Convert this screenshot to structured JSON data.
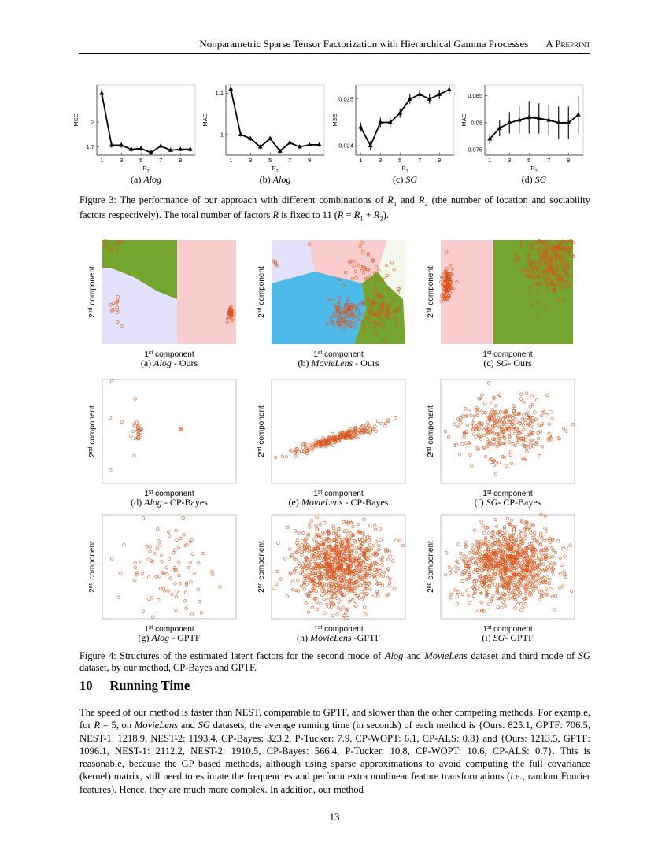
{
  "header": {
    "title": "Nonparametric Sparse Tensor Factorization with Hierarchical Gamma Processes",
    "tag": "A Preprint"
  },
  "chart_data": [
    {
      "type": "line",
      "ylabel": "MSE",
      "xlabel": "R",
      "xlabel_sub": "2",
      "caption_label": "(a) ",
      "caption_name": "Alog",
      "color": "#000000",
      "x": [
        1,
        2,
        3,
        4,
        5,
        6,
        7,
        8,
        9,
        10
      ],
      "values": [
        2.35,
        1.72,
        1.72,
        1.67,
        1.68,
        1.63,
        1.71,
        1.66,
        1.67,
        1.67
      ],
      "errors": [
        0.05,
        0.03,
        0.03,
        0.03,
        0.03,
        0.03,
        0.02,
        0.02,
        0.02,
        0.03
      ],
      "xlim": [
        0.5,
        10.5
      ],
      "ylim": [
        1.6,
        2.45
      ],
      "xticks": [
        1,
        3,
        5,
        7,
        9
      ],
      "yticks": [
        1.7,
        2
      ]
    },
    {
      "type": "line",
      "ylabel": "MAE",
      "xlabel": "R",
      "xlabel_sub": "2",
      "caption_label": "(b) ",
      "caption_name": "Alog",
      "color": "#000000",
      "x": [
        1,
        2,
        3,
        4,
        5,
        6,
        7,
        8,
        9,
        10
      ],
      "values": [
        1.11,
        1.0,
        0.99,
        0.97,
        0.99,
        0.96,
        0.98,
        0.97,
        0.975,
        0.975
      ],
      "errors": [
        0.012,
        0.005,
        0.005,
        0.005,
        0.005,
        0.005,
        0.004,
        0.004,
        0.004,
        0.005
      ],
      "xlim": [
        0.5,
        10.5
      ],
      "ylim": [
        0.95,
        1.12
      ],
      "xticks": [
        1,
        3,
        5,
        7,
        9
      ],
      "yticks": [
        1,
        1.1
      ]
    },
    {
      "type": "line",
      "ylabel": "MSE",
      "xlabel": "R",
      "xlabel_sub": "2",
      "caption_label": "(c) ",
      "caption_name": "SG",
      "color": "#000000",
      "x": [
        1,
        2,
        3,
        4,
        5,
        6,
        7,
        8,
        9,
        10
      ],
      "values": [
        0.0244,
        0.024,
        0.0245,
        0.0245,
        0.0247,
        0.025,
        0.0251,
        0.025,
        0.0251,
        0.0252
      ],
      "errors": [
        0.0001,
        0.0001,
        0.0001,
        0.0001,
        0.0001,
        0.0001,
        0.0001,
        0.0001,
        0.0001,
        0.0001
      ],
      "xlim": [
        0.5,
        10.5
      ],
      "ylim": [
        0.0238,
        0.0253
      ],
      "xticks": [
        1,
        3,
        5,
        7,
        9
      ],
      "yticks": [
        0.024,
        0.025
      ]
    },
    {
      "type": "line",
      "ylabel": "MAE",
      "xlabel": "R",
      "xlabel_sub": "2",
      "caption_label": "(d) ",
      "caption_name": "SG",
      "color": "#000000",
      "x": [
        1,
        2,
        3,
        4,
        5,
        6,
        7,
        8,
        9,
        10
      ],
      "values": [
        0.077,
        0.079,
        0.08,
        0.0805,
        0.081,
        0.0808,
        0.0805,
        0.08,
        0.08,
        0.0815
      ],
      "errors": [
        0.001,
        0.0015,
        0.002,
        0.0025,
        0.003,
        0.0028,
        0.0028,
        0.003,
        0.003,
        0.0035
      ],
      "xlim": [
        0.5,
        10.5
      ],
      "ylim": [
        0.074,
        0.087
      ],
      "xticks": [
        1,
        3,
        5,
        7,
        9
      ],
      "yticks": [
        0.075,
        0.08,
        0.085
      ]
    }
  ],
  "figure3_caption": [
    {
      "text": "Figure 3: The performance of our approach with different combinations of "
    },
    {
      "text": "R",
      "style": "italic"
    },
    {
      "text": "1",
      "style": "sub"
    },
    {
      "text": " and "
    },
    {
      "text": "R",
      "style": "italic"
    },
    {
      "text": "2",
      "style": "sub"
    },
    {
      "text": " (the number of location and sociability factors respectively). The total number of factors "
    },
    {
      "text": "R",
      "style": "italic"
    },
    {
      "text": " is fixed to 11 ("
    },
    {
      "text": "R",
      "style": "italic"
    },
    {
      "text": " = "
    },
    {
      "text": "R",
      "style": "italic"
    },
    {
      "text": "1",
      "style": "sub"
    },
    {
      "text": " + "
    },
    {
      "text": "R",
      "style": "italic"
    },
    {
      "text": "2",
      "style": "sub"
    },
    {
      "text": ")."
    }
  ],
  "figure4": {
    "axis": {
      "x_base": "1",
      "x_sup": "st",
      "x_rest": " component",
      "y_base": "2",
      "y_sup": "nd",
      "y_rest": " component"
    },
    "panels": [
      [
        {
          "text": "(a) "
        },
        {
          "text": "Alog",
          "style": "italic"
        },
        {
          "text": " - Ours"
        }
      ],
      [
        {
          "text": "(b) "
        },
        {
          "text": "MovieLens",
          "style": "italic"
        },
        {
          "text": " - Ours"
        }
      ],
      [
        {
          "text": "(c) "
        },
        {
          "text": "SG",
          "style": "italic"
        },
        {
          "text": "- Ours"
        }
      ],
      [
        {
          "text": "(d) "
        },
        {
          "text": "Alog",
          "style": "italic"
        },
        {
          "text": " - CP-Bayes"
        }
      ],
      [
        {
          "text": "(e) "
        },
        {
          "text": "MovieLens",
          "style": "italic"
        },
        {
          "text": " - CP-Bayes"
        }
      ],
      [
        {
          "text": "(f) "
        },
        {
          "text": "SG",
          "style": "italic"
        },
        {
          "text": "- CP-Bayes"
        }
      ],
      [
        {
          "text": "(g) "
        },
        {
          "text": "Alog",
          "style": "italic"
        },
        {
          "text": " - GPTF"
        }
      ],
      [
        {
          "text": "(h) "
        },
        {
          "text": "MovieLens",
          "style": "italic"
        },
        {
          "text": " -GPTF"
        }
      ],
      [
        {
          "text": "(i) "
        },
        {
          "text": "SG",
          "style": "italic"
        },
        {
          "text": "- GPTF"
        }
      ]
    ],
    "caption": [
      {
        "text": "Figure 4: Structures of the estimated latent factors for the second mode of "
      },
      {
        "text": "Alog",
        "style": "italic"
      },
      {
        "text": " and "
      },
      {
        "text": "MovieLens",
        "style": "italic"
      },
      {
        "text": " dataset and third mode of "
      },
      {
        "text": "SG",
        "style": "italic"
      },
      {
        "text": " dataset, by our method, CP-Bayes and GPTF."
      }
    ]
  },
  "section": {
    "number": "10",
    "title": "Running Time"
  },
  "paragraph": [
    {
      "text": "The speed of our method is faster than NEST, comparable to GPTF, and slower than the other competing methods. For example, for "
    },
    {
      "text": "R",
      "style": "italic"
    },
    {
      "text": " = 5, on "
    },
    {
      "text": "MovieLens",
      "style": "italic"
    },
    {
      "text": " and "
    },
    {
      "text": "SG",
      "style": "italic"
    },
    {
      "text": " datasets, the average running time (in seconds) of each method is {Ours: 825.1, GPTF: 706.5, NEST-1: 1218.9, NEST-2: 1193.4, CP-Bayes: 323.2, P-Tucker: 7.9, CP-WOPT: 6.1, CP-ALS: 0.8} and {Ours: 1213.5, GPTF: 1096.1, NEST-1: 2112.2, NEST-2: 1910.5, CP-Bayes: 566.4, P-Tucker: 10.8, CP-WOPT: 10.6, CP-ALS: 0.7}. This is reasonable, because the GP based methods, although using sparse approximations to avoid computing the full covariance (kernel) matrix, still need to estimate the frequencies and perform extra nonlinear feature transformations ("
    },
    {
      "text": "i.e.",
      "style": "italic"
    },
    {
      "text": ", random Fourier features). Hence, they are much more complex. In addition, our method"
    }
  ],
  "page_number": "13"
}
